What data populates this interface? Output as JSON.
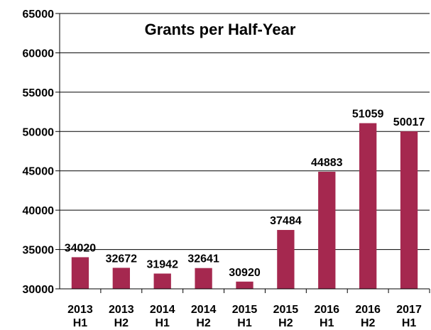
{
  "chart_data": {
    "type": "bar",
    "title": "Grants per Half-Year",
    "xlabel": "",
    "ylabel": "",
    "ylim": [
      30000,
      65000
    ],
    "yticks": [
      "30000",
      "35000",
      "40000",
      "45000",
      "50000",
      "55000",
      "60000",
      "65000"
    ],
    "grid": true,
    "bar_color": "#A5284F",
    "categories": [
      [
        "2013",
        "H1"
      ],
      [
        "2013",
        "H2"
      ],
      [
        "2014",
        "H1"
      ],
      [
        "2014",
        "H2"
      ],
      [
        "2015",
        "H1"
      ],
      [
        "2015",
        "H2"
      ],
      [
        "2016",
        "H1"
      ],
      [
        "2016",
        "H2"
      ],
      [
        "2017",
        "H1"
      ]
    ],
    "values": [
      34020,
      32672,
      31942,
      32641,
      30920,
      37484,
      44883,
      51059,
      50017
    ],
    "data_labels": [
      "34020",
      "32672",
      "31942",
      "32641",
      "30920",
      "37484",
      "44883",
      "51059",
      "50017"
    ]
  }
}
